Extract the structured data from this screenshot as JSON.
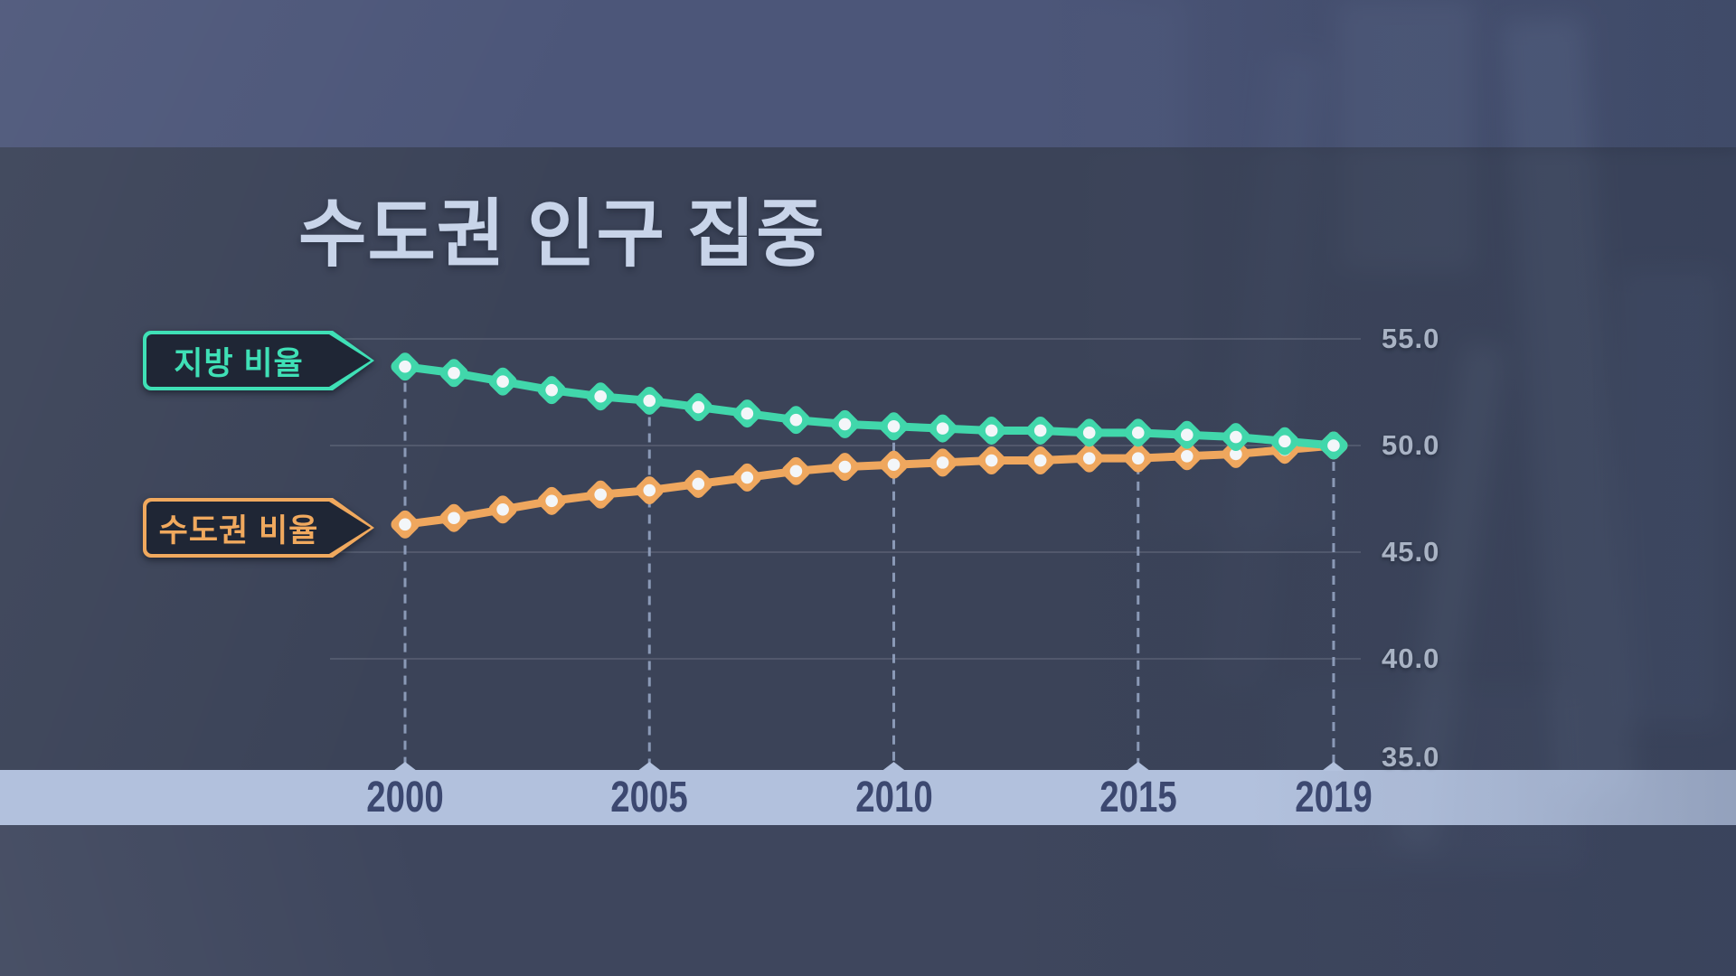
{
  "title": "수도권 인구 집중",
  "legend": {
    "local_label": "지방 비율",
    "metro_label": "수도권 비율"
  },
  "colors": {
    "local_series": "#41d7ab",
    "metro_series": "#efa75e",
    "marker_center": "#f3f6f9",
    "axis_band_bg": "#b2c1dd",
    "axis_band_text": "#3c4870",
    "y_label_text": "#a9b3c4",
    "title_text": "#c8d4e9",
    "dashed_guide": "#8f9ebc",
    "gridline": "rgba(237,242,250,0.17)",
    "legend_box_bg": "#1f2635"
  },
  "chart_data": {
    "type": "line",
    "title": "수도권 인구 집중",
    "x": [
      2000,
      2001,
      2002,
      2003,
      2004,
      2005,
      2006,
      2007,
      2008,
      2009,
      2010,
      2011,
      2012,
      2013,
      2014,
      2015,
      2016,
      2017,
      2018,
      2019
    ],
    "series": [
      {
        "name": "지방 비율",
        "color": "#41d7ab",
        "values": [
          53.7,
          53.4,
          53.0,
          52.6,
          52.3,
          52.1,
          51.8,
          51.5,
          51.2,
          51.0,
          50.9,
          50.8,
          50.7,
          50.7,
          50.6,
          50.6,
          50.5,
          50.4,
          50.2,
          50.0
        ]
      },
      {
        "name": "수도권 비율",
        "color": "#efa75e",
        "values": [
          46.3,
          46.6,
          47.0,
          47.4,
          47.7,
          47.9,
          48.2,
          48.5,
          48.8,
          49.0,
          49.1,
          49.2,
          49.3,
          49.3,
          49.4,
          49.4,
          49.5,
          49.6,
          49.8,
          50.0
        ]
      }
    ],
    "xlabel": "",
    "ylabel": "",
    "ylim": [
      35,
      55
    ],
    "yticks": [
      {
        "label": "55.0",
        "value": 55,
        "grid": true
      },
      {
        "label": "50.0",
        "value": 50,
        "grid": true
      },
      {
        "label": "45.0",
        "value": 45,
        "grid": true
      },
      {
        "label": "40.0",
        "value": 40,
        "grid": true
      },
      {
        "label": "35.0",
        "value": 35,
        "grid": false
      }
    ],
    "xticks": [
      2000,
      2005,
      2010,
      2015,
      2019
    ],
    "grid": "horizontal",
    "legend_position": "left of first data points, arrow pointers"
  }
}
